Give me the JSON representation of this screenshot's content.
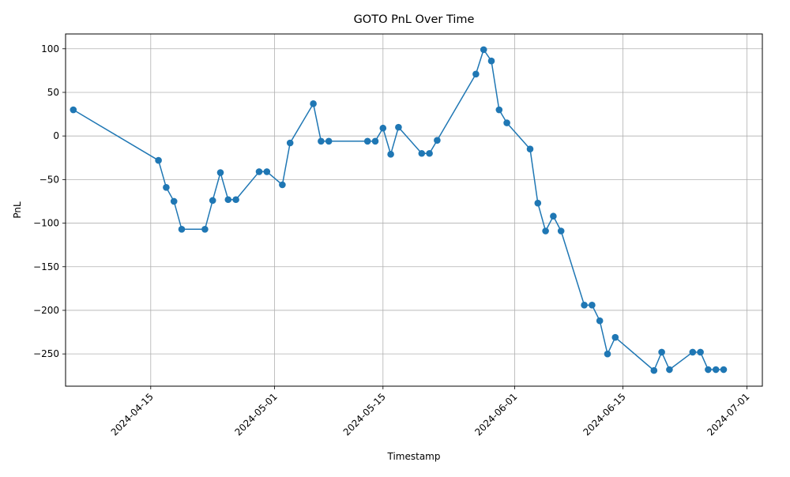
{
  "chart_data": {
    "type": "line",
    "title": "GOTO PnL Over Time",
    "xlabel": "Timestamp",
    "ylabel": "PnL",
    "xlim": [
      "2024-04-04",
      "2024-07-03"
    ],
    "ylim": [
      -287,
      117
    ],
    "grid": true,
    "line_color": "#1f77b4",
    "x_ticks": [
      "2024-04-15",
      "2024-05-01",
      "2024-05-15",
      "2024-06-01",
      "2024-06-15",
      "2024-07-01"
    ],
    "y_ticks": [
      100,
      50,
      0,
      -50,
      -100,
      -150,
      -200,
      -250
    ],
    "y_tick_labels": [
      "100",
      "50",
      "0",
      "−50",
      "−100",
      "−150",
      "−200",
      "−250"
    ],
    "series": [
      {
        "x": [
          "2024-04-05",
          "2024-04-16",
          "2024-04-17",
          "2024-04-18",
          "2024-04-19",
          "2024-04-22",
          "2024-04-23",
          "2024-04-24",
          "2024-04-25",
          "2024-04-26",
          "2024-04-29",
          "2024-04-30",
          "2024-05-02",
          "2024-05-03",
          "2024-05-06",
          "2024-05-07",
          "2024-05-08",
          "2024-05-13",
          "2024-05-14",
          "2024-05-15",
          "2024-05-16",
          "2024-05-17",
          "2024-05-20",
          "2024-05-21",
          "2024-05-22",
          "2024-05-27",
          "2024-05-28",
          "2024-05-29",
          "2024-05-30",
          "2024-05-31",
          "2024-06-03",
          "2024-06-04",
          "2024-06-05",
          "2024-06-06",
          "2024-06-07",
          "2024-06-10",
          "2024-06-11",
          "2024-06-12",
          "2024-06-13",
          "2024-06-14",
          "2024-06-19",
          "2024-06-20",
          "2024-06-21",
          "2024-06-24",
          "2024-06-25",
          "2024-06-26",
          "2024-06-27",
          "2024-06-28"
        ],
        "y": [
          30,
          -28,
          -59,
          -75,
          -107,
          -107,
          -74,
          -42,
          -73,
          -73,
          -41,
          -41,
          -56,
          -8,
          37,
          -6,
          -6,
          -6,
          -6,
          9,
          -21,
          10,
          -20,
          -20,
          -5,
          71,
          99,
          86,
          30,
          15,
          -15,
          -77,
          -109,
          -92,
          -109,
          -194,
          -194,
          -212,
          -250,
          -231,
          -269,
          -248,
          -268,
          -248,
          -248,
          -268,
          -268,
          -268
        ]
      }
    ]
  }
}
